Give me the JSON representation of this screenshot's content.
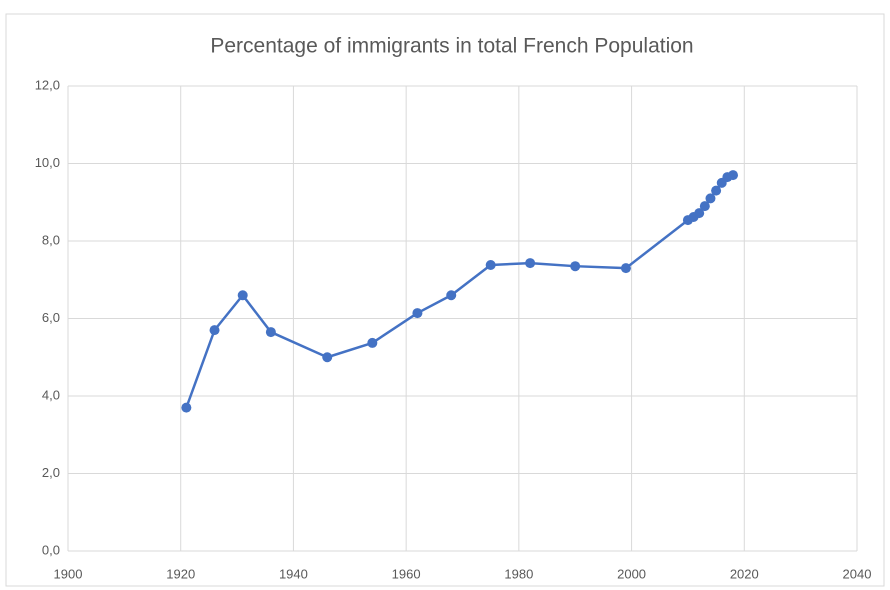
{
  "chart_data": {
    "type": "line",
    "title": "Percentage of immigrants in total French Population",
    "x": [
      1921,
      1926,
      1931,
      1936,
      1946,
      1954,
      1962,
      1968,
      1975,
      1982,
      1990,
      1999,
      2010,
      2011,
      2012,
      2013,
      2014,
      2015,
      2016,
      2017,
      2018
    ],
    "values": [
      3.7,
      5.7,
      6.6,
      5.65,
      5.0,
      5.37,
      6.14,
      6.6,
      7.38,
      7.43,
      7.35,
      7.3,
      8.54,
      8.62,
      8.72,
      8.9,
      9.1,
      9.3,
      9.5,
      9.65,
      9.7
    ],
    "color": "#4472c4",
    "xlim": [
      1900,
      2040
    ],
    "xticks": [
      1900,
      1920,
      1940,
      1960,
      1980,
      2000,
      2020,
      2040
    ],
    "ylim": [
      0,
      12
    ],
    "yticks": [
      {
        "value": 0,
        "label": "0,0"
      },
      {
        "value": 2,
        "label": "2,0"
      },
      {
        "value": 4,
        "label": "4,0"
      },
      {
        "value": 6,
        "label": "6,0"
      },
      {
        "value": 8,
        "label": "8,0"
      },
      {
        "value": 10,
        "label": "10,0"
      },
      {
        "value": 12,
        "label": "12,0"
      }
    ],
    "grid": true
  }
}
